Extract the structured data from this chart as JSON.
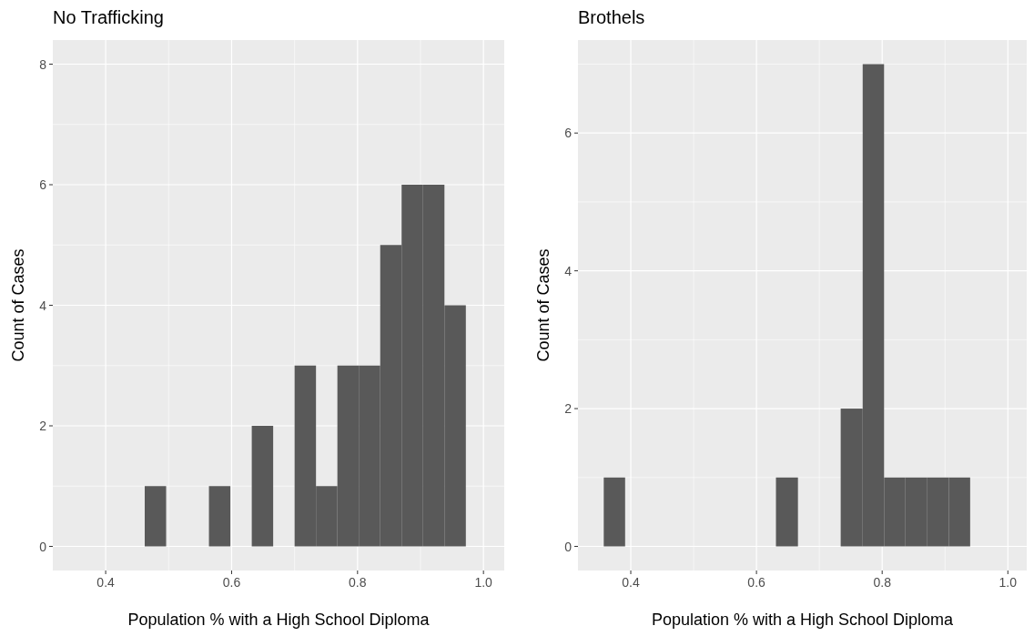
{
  "chart_data": [
    {
      "type": "histogram",
      "title": "No Trafficking",
      "xlabel": "Population % with a High School Diploma",
      "ylabel": "Count of Cases",
      "color": "#595959",
      "bins": [
        0.462,
        0.496,
        0.564,
        0.598,
        0.632,
        0.666,
        0.7,
        0.734,
        0.768,
        0.802,
        0.836,
        0.87,
        0.904,
        0.938,
        0.972
      ],
      "values": [
        1,
        0,
        1,
        0,
        2,
        0,
        3,
        1,
        3,
        3,
        5,
        6,
        6,
        4
      ],
      "xlim": [
        0.316,
        1.033
      ],
      "xticks": [
        0.4,
        0.6,
        0.8,
        {
          "value": 1.0,
          "label": "1.0"
        }
      ],
      "ylim": [
        -0.4,
        8.4
      ],
      "yticks": [
        0,
        2,
        4,
        6,
        8
      ],
      "grid": true
    },
    {
      "type": "histogram",
      "title": "Brothels",
      "xlabel": "Population % with a High School Diploma",
      "ylabel": "Count of Cases",
      "color": "#595959",
      "bins": [
        0.357,
        0.391,
        0.631,
        0.666,
        0.734,
        0.769,
        0.803,
        0.837,
        0.871,
        0.906,
        0.94
      ],
      "values": [
        1,
        0,
        1,
        0,
        2,
        7,
        1,
        1,
        1,
        1
      ],
      "xlim": [
        0.316,
        1.03
      ],
      "xticks": [
        0.4,
        0.6,
        0.8,
        {
          "value": 1.0,
          "label": "1.0"
        }
      ],
      "ylim": [
        -0.35,
        7.35
      ],
      "yticks": [
        0,
        2,
        4,
        6
      ],
      "grid": true
    }
  ]
}
